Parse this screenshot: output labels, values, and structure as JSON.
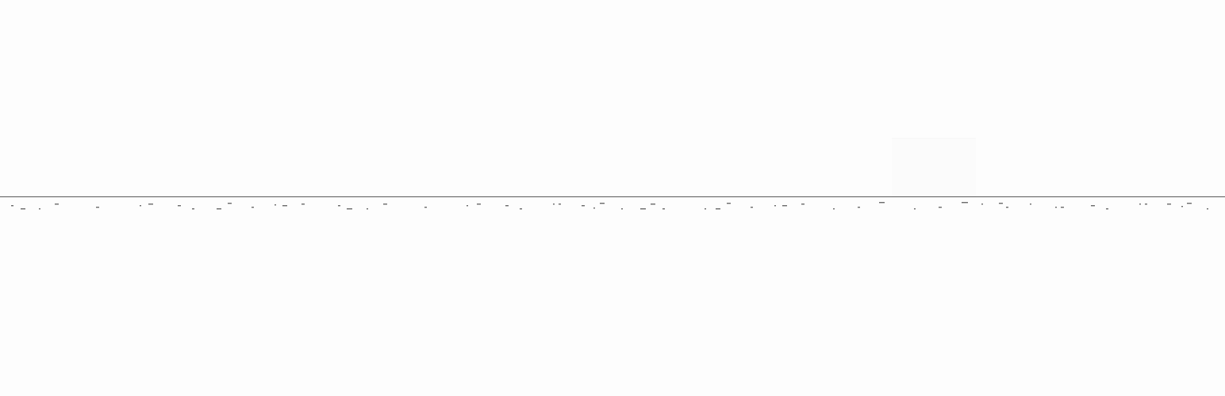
{
  "colors": {
    "background": "#fdfdfd",
    "line": "#5a5a5a",
    "marks": "#6a6a6a"
  }
}
